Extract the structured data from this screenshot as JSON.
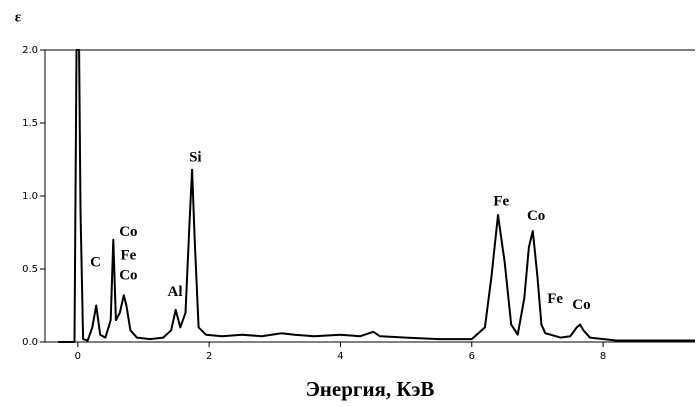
{
  "chart_data": {
    "type": "line",
    "y_label": "ε",
    "x_label": "Энергия, КэВ",
    "xlim": [
      -0.5,
      9.4
    ],
    "xticks": [
      0,
      2,
      4,
      6,
      8
    ],
    "ylim": [
      0,
      2
    ],
    "yticks": [
      {
        "value": 0,
        "label": "0.0"
      },
      0.5,
      {
        "value": 1,
        "label": "1.0"
      },
      1.5,
      {
        "value": 2,
        "label": "2.0"
      }
    ],
    "color": "#000000",
    "x": [
      -0.3,
      -0.05,
      -0.02,
      0.02,
      0.04,
      0.08,
      0.15,
      0.22,
      0.28,
      0.34,
      0.42,
      0.5,
      0.54,
      0.58,
      0.64,
      0.7,
      0.74,
      0.8,
      0.9,
      1.1,
      1.3,
      1.42,
      1.49,
      1.56,
      1.64,
      1.7,
      1.74,
      1.78,
      1.84,
      1.95,
      2.2,
      2.5,
      2.8,
      3.1,
      3.3,
      3.6,
      4.0,
      4.3,
      4.5,
      4.6,
      5.0,
      5.5,
      6.0,
      6.2,
      6.3,
      6.4,
      6.5,
      6.6,
      6.7,
      6.8,
      6.87,
      6.93,
      7.0,
      7.06,
      7.12,
      7.2,
      7.35,
      7.5,
      7.6,
      7.65,
      7.7,
      7.8,
      8.2,
      8.6,
      9.0,
      9.4
    ],
    "values": [
      0,
      0,
      2.0,
      2.0,
      0.9,
      0.02,
      0.01,
      0.1,
      0.25,
      0.05,
      0.03,
      0.15,
      0.7,
      0.15,
      0.2,
      0.32,
      0.25,
      0.08,
      0.03,
      0.02,
      0.03,
      0.08,
      0.22,
      0.1,
      0.2,
      0.8,
      1.18,
      0.7,
      0.1,
      0.05,
      0.04,
      0.05,
      0.04,
      0.06,
      0.05,
      0.04,
      0.05,
      0.04,
      0.07,
      0.04,
      0.03,
      0.02,
      0.02,
      0.1,
      0.45,
      0.87,
      0.55,
      0.12,
      0.05,
      0.3,
      0.65,
      0.76,
      0.45,
      0.12,
      0.06,
      0.05,
      0.03,
      0.04,
      0.1,
      0.12,
      0.08,
      0.03,
      0.01,
      0.01,
      0.01,
      0.01
    ],
    "annotations": [
      {
        "text": "C",
        "x": 0.27,
        "y": 0.54
      },
      {
        "text": "Co",
        "x": 0.77,
        "y": 0.75
      },
      {
        "text": "Fe",
        "x": 0.77,
        "y": 0.59
      },
      {
        "text": "Co",
        "x": 0.77,
        "y": 0.45
      },
      {
        "text": "Al",
        "x": 1.48,
        "y": 0.34
      },
      {
        "text": "Si",
        "x": 1.79,
        "y": 1.26
      },
      {
        "text": "Fe",
        "x": 6.45,
        "y": 0.96
      },
      {
        "text": "Co",
        "x": 6.98,
        "y": 0.86
      },
      {
        "text": "Fe",
        "x": 7.27,
        "y": 0.29
      },
      {
        "text": "Co",
        "x": 7.67,
        "y": 0.25
      }
    ]
  }
}
